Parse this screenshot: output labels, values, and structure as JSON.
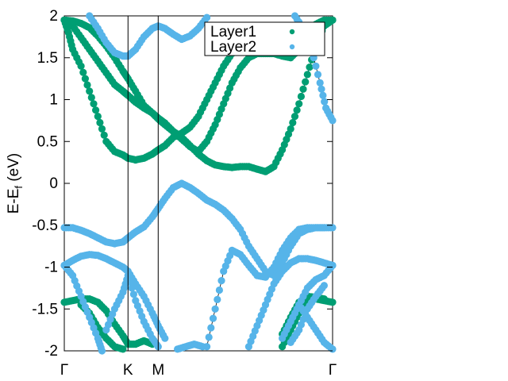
{
  "chart_data": {
    "type": "scatter",
    "title": "",
    "xlabel": "",
    "ylabel": "E-E_f (eV)",
    "ylabel_parts": {
      "base": "E-E",
      "sub": "f",
      "unit": " (eV)"
    },
    "ylim": [
      -2,
      2
    ],
    "xlim": [
      0,
      3.2
    ],
    "y_ticks": [
      -2,
      -1.5,
      -1,
      -0.5,
      0,
      0.5,
      1,
      1.5,
      2
    ],
    "y_tick_labels": [
      "-2",
      "-1.5",
      "-1",
      "-0.5",
      "0",
      "0.5",
      "1",
      "1.5",
      "2"
    ],
    "k_points": [
      {
        "label": "Γ",
        "x": 0
      },
      {
        "label": "K",
        "x": 0.76
      },
      {
        "label": "M",
        "x": 1.12
      },
      {
        "label": "Γ",
        "x": 3.2
      }
    ],
    "legend": {
      "position": "top-right"
    },
    "series": [
      {
        "name": "Layer1",
        "color": "#009e73",
        "bands": [
          [
            [
              0,
              1.95
            ],
            [
              0.1,
              1.94
            ],
            [
              0.2,
              1.91
            ],
            [
              0.3,
              1.86
            ],
            [
              0.4,
              1.76
            ],
            [
              0.5,
              1.64
            ],
            [
              0.6,
              1.5
            ],
            [
              0.7,
              1.34
            ],
            [
              0.76,
              1.25
            ],
            [
              0.85,
              1.1
            ],
            [
              0.95,
              0.93
            ],
            [
              1.05,
              0.84
            ],
            [
              1.12,
              0.78
            ],
            [
              1.2,
              0.72
            ],
            [
              1.3,
              0.62
            ],
            [
              1.4,
              0.53
            ],
            [
              1.5,
              0.44
            ],
            [
              1.6,
              0.38
            ],
            [
              1.7,
              0.5
            ],
            [
              1.8,
              0.7
            ],
            [
              1.9,
              0.95
            ],
            [
              2.0,
              1.2
            ],
            [
              2.1,
              1.38
            ],
            [
              2.2,
              1.5
            ],
            [
              2.3,
              1.55
            ],
            [
              2.4,
              1.55
            ],
            [
              2.5,
              1.55
            ],
            [
              2.6,
              1.52
            ],
            [
              2.7,
              1.5
            ],
            [
              2.8,
              1.6
            ],
            [
              2.9,
              1.76
            ],
            [
              3.0,
              1.9
            ],
            [
              3.1,
              1.95
            ],
            [
              3.2,
              1.95
            ]
          ],
          [
            [
              0,
              1.95
            ],
            [
              0.1,
              1.88
            ],
            [
              0.2,
              1.74
            ],
            [
              0.3,
              1.6
            ],
            [
              0.4,
              1.46
            ],
            [
              0.5,
              1.32
            ],
            [
              0.6,
              1.18
            ],
            [
              0.7,
              1.1
            ],
            [
              0.76,
              1.05
            ],
            [
              0.85,
              0.97
            ],
            [
              0.95,
              0.9
            ],
            [
              1.05,
              0.84
            ],
            [
              1.12,
              0.77
            ],
            [
              1.2,
              0.7
            ],
            [
              1.3,
              0.62
            ],
            [
              1.4,
              0.55
            ],
            [
              1.5,
              0.45
            ],
            [
              1.6,
              0.35
            ],
            [
              1.7,
              0.27
            ],
            [
              1.8,
              0.22
            ],
            [
              1.9,
              0.2
            ],
            [
              2.0,
              0.19
            ],
            [
              2.1,
              0.2
            ],
            [
              2.2,
              0.2
            ],
            [
              2.3,
              0.17
            ],
            [
              2.4,
              0.14
            ],
            [
              2.5,
              0.2
            ],
            [
              2.6,
              0.4
            ],
            [
              2.7,
              0.65
            ],
            [
              2.8,
              0.95
            ],
            [
              2.9,
              1.3
            ],
            [
              3.0,
              1.65
            ],
            [
              3.1,
              1.88
            ],
            [
              3.2,
              1.95
            ]
          ],
          [
            [
              0,
              1.95
            ],
            [
              0.05,
              1.8
            ],
            [
              0.1,
              1.6
            ],
            [
              0.2,
              1.4
            ],
            [
              0.3,
              1.1
            ],
            [
              0.4,
              0.8
            ],
            [
              0.5,
              0.5
            ],
            [
              0.6,
              0.38
            ],
            [
              0.7,
              0.34
            ],
            [
              0.76,
              0.3
            ],
            [
              0.85,
              0.28
            ],
            [
              0.95,
              0.3
            ],
            [
              1.05,
              0.35
            ],
            [
              1.12,
              0.4
            ],
            [
              1.2,
              0.45
            ],
            [
              1.3,
              0.55
            ],
            [
              1.4,
              0.6
            ],
            [
              1.5,
              0.67
            ],
            [
              1.6,
              0.8
            ],
            [
              1.7,
              1.0
            ],
            [
              1.8,
              1.2
            ],
            [
              1.9,
              1.4
            ],
            [
              2.0,
              1.55
            ],
            [
              2.1,
              1.7
            ],
            [
              2.2,
              1.8
            ],
            [
              2.3,
              1.85
            ],
            [
              2.4,
              1.87
            ]
          ],
          [
            [
              0,
              -1.42
            ],
            [
              0.1,
              -1.4
            ],
            [
              0.2,
              -1.38
            ],
            [
              0.3,
              -1.38
            ],
            [
              0.4,
              -1.42
            ],
            [
              0.5,
              -1.52
            ],
            [
              0.6,
              -1.68
            ],
            [
              0.7,
              -1.82
            ],
            [
              0.76,
              -1.92
            ],
            [
              0.85,
              -1.92
            ],
            [
              0.95,
              -1.88
            ],
            [
              1.05,
              -1.92
            ]
          ],
          [
            [
              0.2,
              -1.45
            ],
            [
              0.3,
              -1.55
            ],
            [
              0.4,
              -1.72
            ],
            [
              0.5,
              -1.85
            ],
            [
              0.6,
              -1.95
            ],
            [
              0.7,
              -1.98
            ]
          ],
          [
            [
              2.6,
              -1.95
            ],
            [
              2.7,
              -1.75
            ],
            [
              2.8,
              -1.55
            ],
            [
              2.9,
              -1.4
            ],
            [
              3.0,
              -1.38
            ],
            [
              3.1,
              -1.4
            ],
            [
              3.2,
              -1.42
            ]
          ],
          [
            [
              2.6,
              -1.8
            ],
            [
              2.7,
              -1.6
            ],
            [
              2.8,
              -1.42
            ],
            [
              2.9,
              -1.35
            ],
            [
              3.0,
              -1.36
            ],
            [
              3.1,
              -1.38
            ]
          ]
        ]
      },
      {
        "name": "Layer2",
        "color": "#56b4e9",
        "bands": [
          [
            [
              0,
              -0.53
            ],
            [
              0.1,
              -0.53
            ],
            [
              0.2,
              -0.56
            ],
            [
              0.3,
              -0.6
            ],
            [
              0.4,
              -0.65
            ],
            [
              0.5,
              -0.7
            ],
            [
              0.6,
              -0.72
            ],
            [
              0.7,
              -0.7
            ],
            [
              0.76,
              -0.65
            ],
            [
              0.85,
              -0.58
            ],
            [
              0.95,
              -0.52
            ],
            [
              1.05,
              -0.4
            ],
            [
              1.12,
              -0.3
            ],
            [
              1.2,
              -0.18
            ],
            [
              1.3,
              -0.05
            ],
            [
              1.4,
              0.0
            ],
            [
              1.5,
              -0.05
            ],
            [
              1.6,
              -0.12
            ],
            [
              1.7,
              -0.2
            ],
            [
              1.8,
              -0.25
            ],
            [
              1.9,
              -0.32
            ],
            [
              2.0,
              -0.42
            ],
            [
              2.1,
              -0.55
            ],
            [
              2.2,
              -0.75
            ],
            [
              2.3,
              -0.9
            ],
            [
              2.4,
              -1.05
            ],
            [
              2.5,
              -1.1
            ],
            [
              2.6,
              -0.95
            ],
            [
              2.7,
              -0.75
            ],
            [
              2.8,
              -0.6
            ],
            [
              2.9,
              -0.55
            ],
            [
              3.0,
              -0.53
            ],
            [
              3.1,
              -0.53
            ],
            [
              3.2,
              -0.53
            ]
          ],
          [
            [
              0,
              -0.98
            ],
            [
              0.1,
              -0.92
            ],
            [
              0.2,
              -0.87
            ],
            [
              0.3,
              -0.85
            ],
            [
              0.4,
              -0.86
            ],
            [
              0.5,
              -0.9
            ],
            [
              0.6,
              -0.95
            ],
            [
              0.7,
              -1.0
            ],
            [
              0.76,
              -1.05
            ],
            [
              0.85,
              -1.2
            ],
            [
              0.95,
              -1.35
            ],
            [
              1.05,
              -1.55
            ],
            [
              1.12,
              -1.7
            ],
            [
              1.2,
              -1.85
            ]
          ],
          [
            [
              0,
              -0.98
            ],
            [
              0.1,
              -1.1
            ],
            [
              0.2,
              -1.35
            ],
            [
              0.3,
              -1.6
            ],
            [
              0.4,
              -1.85
            ],
            [
              0.45,
              -2.0
            ]
          ],
          [
            [
              0.5,
              -1.75
            ],
            [
              0.6,
              -1.5
            ],
            [
              0.7,
              -1.3
            ],
            [
              0.76,
              -1.1
            ],
            [
              0.85,
              -1.4
            ],
            [
              0.95,
              -1.65
            ],
            [
              1.05,
              -1.85
            ],
            [
              1.12,
              -1.95
            ]
          ],
          [
            [
              1.35,
              -1.98
            ],
            [
              1.45,
              -1.95
            ],
            [
              1.55,
              -1.92
            ],
            [
              1.65,
              -1.95
            ]
          ],
          [
            [
              1.7,
              -1.95
            ],
            [
              1.8,
              -1.5
            ],
            [
              1.9,
              -1.05
            ],
            [
              2.0,
              -0.8
            ],
            [
              2.1,
              -0.85
            ],
            [
              2.2,
              -0.98
            ],
            [
              2.3,
              -1.1
            ],
            [
              2.4,
              -1.12
            ],
            [
              2.5,
              -1.0
            ],
            [
              2.6,
              -0.8
            ],
            [
              2.7,
              -0.65
            ],
            [
              2.8,
              -0.55
            ],
            [
              2.9,
              -0.53
            ],
            [
              3.0,
              -0.53
            ],
            [
              3.1,
              -0.53
            ]
          ],
          [
            [
              2.2,
              -1.95
            ],
            [
              2.3,
              -1.7
            ],
            [
              2.4,
              -1.45
            ],
            [
              2.5,
              -1.2
            ],
            [
              2.6,
              -1.05
            ],
            [
              2.7,
              -0.95
            ],
            [
              2.8,
              -0.9
            ],
            [
              2.9,
              -0.9
            ],
            [
              3.0,
              -0.92
            ],
            [
              3.1,
              -0.95
            ],
            [
              3.2,
              -0.98
            ]
          ],
          [
            [
              2.6,
              -1.85
            ],
            [
              2.7,
              -1.65
            ],
            [
              2.8,
              -1.45
            ],
            [
              2.9,
              -1.25
            ],
            [
              3.0,
              -1.15
            ],
            [
              3.1,
              -1.1
            ],
            [
              3.2,
              -0.98
            ]
          ],
          [
            [
              2.7,
              -1.9
            ],
            [
              2.8,
              -1.75
            ],
            [
              2.9,
              -1.5
            ],
            [
              3.0,
              -1.35
            ],
            [
              3.1,
              -1.22
            ]
          ],
          [
            [
              2.8,
              -1.45
            ],
            [
              2.9,
              -1.6
            ],
            [
              3.0,
              -1.75
            ],
            [
              3.1,
              -1.9
            ],
            [
              3.2,
              -1.98
            ]
          ],
          [
            [
              0.3,
              2.0
            ],
            [
              0.4,
              1.85
            ],
            [
              0.5,
              1.68
            ],
            [
              0.6,
              1.56
            ],
            [
              0.7,
              1.52
            ],
            [
              0.76,
              1.52
            ],
            [
              0.85,
              1.6
            ],
            [
              0.95,
              1.75
            ],
            [
              1.05,
              1.85
            ],
            [
              1.12,
              1.88
            ],
            [
              1.2,
              1.85
            ],
            [
              1.3,
              1.78
            ],
            [
              1.4,
              1.72
            ],
            [
              1.5,
              1.76
            ],
            [
              1.6,
              1.85
            ],
            [
              1.7,
              1.98
            ]
          ],
          [
            [
              2.75,
              2.0
            ],
            [
              2.85,
              1.85
            ],
            [
              2.95,
              1.6
            ],
            [
              3.05,
              1.2
            ],
            [
              3.12,
              0.9
            ],
            [
              3.2,
              0.75
            ]
          ]
        ]
      }
    ]
  }
}
